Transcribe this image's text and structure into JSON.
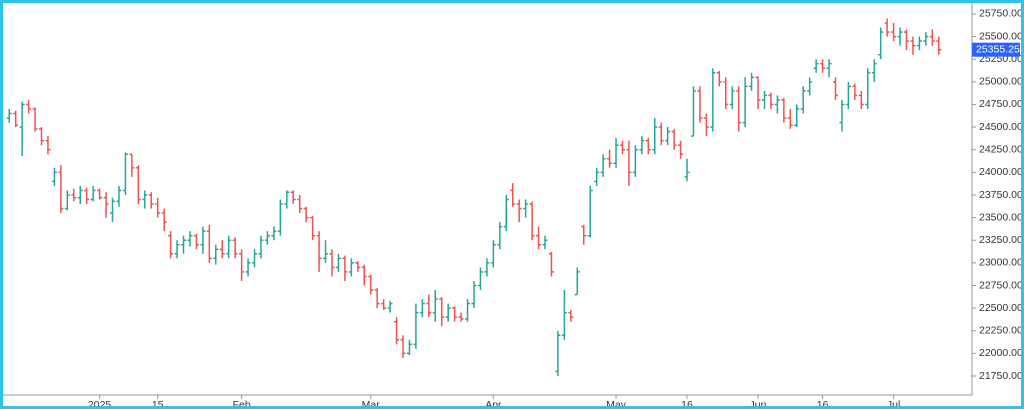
{
  "chart_data": {
    "type": "ohlc",
    "up_color": "#26a69a",
    "down_color": "#ef5350",
    "last_price_color": "#2962ff",
    "ylim": [
      21540,
      25860
    ],
    "yticks": [
      {
        "value": 21750,
        "label": "21750.00"
      },
      {
        "value": 22000,
        "label": "22000.00"
      },
      {
        "value": 22250,
        "label": "22250.00"
      },
      {
        "value": 22500,
        "label": "22500.00"
      },
      {
        "value": 22750,
        "label": "22750.00"
      },
      {
        "value": 23000,
        "label": "23000.00"
      },
      {
        "value": 23250,
        "label": "23250.00"
      },
      {
        "value": 23500,
        "label": "23500.00"
      },
      {
        "value": 23750,
        "label": "23750.00"
      },
      {
        "value": 24000,
        "label": "24000.00"
      },
      {
        "value": 24250,
        "label": "24250.00"
      },
      {
        "value": 24500,
        "label": "24500.00"
      },
      {
        "value": 24750,
        "label": "24750.00"
      },
      {
        "value": 25000,
        "label": "25000.00"
      },
      {
        "value": 25250,
        "label": "25250.00"
      },
      {
        "value": 25500,
        "label": "25500.00"
      },
      {
        "value": 25750,
        "label": "25750.00"
      }
    ],
    "last_price": 25355.25,
    "categories": [
      null,
      null,
      null,
      null,
      null,
      null,
      null,
      null,
      null,
      null,
      null,
      null,
      null,
      null,
      "2025",
      null,
      null,
      null,
      null,
      null,
      null,
      null,
      null,
      "15",
      null,
      null,
      null,
      null,
      null,
      null,
      null,
      null,
      null,
      null,
      null,
      null,
      "Feb",
      null,
      null,
      null,
      null,
      null,
      null,
      null,
      null,
      null,
      null,
      null,
      null,
      null,
      null,
      null,
      null,
      null,
      null,
      null,
      "Mar",
      null,
      null,
      null,
      null,
      null,
      null,
      null,
      null,
      null,
      null,
      null,
      null,
      null,
      null,
      null,
      null,
      null,
      null,
      "Apr",
      null,
      null,
      null,
      null,
      null,
      null,
      null,
      null,
      null,
      null,
      null,
      null,
      null,
      null,
      null,
      null,
      null,
      null,
      "May",
      null,
      null,
      null,
      null,
      null,
      null,
      null,
      null,
      null,
      null,
      "16",
      null,
      null,
      null,
      null,
      null,
      null,
      null,
      null,
      null,
      null,
      "Jun",
      null,
      null,
      null,
      null,
      null,
      null,
      null,
      null,
      null,
      "16",
      null,
      null,
      null,
      null,
      null,
      null,
      null,
      null,
      null,
      null,
      "Jul",
      null,
      null,
      null,
      null,
      null,
      null,
      null
    ],
    "ohlc": [
      [
        24600,
        24700,
        24550,
        24650
      ],
      [
        24650,
        24680,
        24500,
        24520
      ],
      [
        24500,
        24780,
        24180,
        24750
      ],
      [
        24750,
        24800,
        24650,
        24700
      ],
      [
        24700,
        24720,
        24450,
        24480
      ],
      [
        24480,
        24500,
        24300,
        24350
      ],
      [
        24350,
        24400,
        24200,
        24250
      ],
      [
        23900,
        24050,
        23850,
        24000
      ],
      [
        24000,
        24080,
        23550,
        23600
      ],
      [
        23600,
        23800,
        23580,
        23750
      ],
      [
        23750,
        23820,
        23680,
        23720
      ],
      [
        23720,
        23850,
        23650,
        23800
      ],
      [
        23800,
        23830,
        23650,
        23700
      ],
      [
        23700,
        23850,
        23680,
        23800
      ],
      [
        23800,
        23820,
        23700,
        23720
      ],
      [
        23720,
        23780,
        23500,
        23650
      ],
      [
        23550,
        23720,
        23450,
        23680
      ],
      [
        23680,
        23850,
        23620,
        23800
      ],
      [
        23800,
        24220,
        23750,
        24200
      ],
      [
        24200,
        24200,
        23950,
        24050
      ],
      [
        24050,
        24080,
        23650,
        23700
      ],
      [
        23700,
        23800,
        23600,
        23750
      ],
      [
        23750,
        23780,
        23600,
        23650
      ],
      [
        23650,
        23720,
        23500,
        23550
      ],
      [
        23550,
        23600,
        23350,
        23450
      ],
      [
        23300,
        23350,
        23050,
        23100
      ],
      [
        23100,
        23250,
        23050,
        23200
      ],
      [
        23200,
        23300,
        23100,
        23250
      ],
      [
        23250,
        23350,
        23180,
        23300
      ],
      [
        23300,
        23320,
        23150,
        23200
      ],
      [
        23200,
        23400,
        23100,
        23350
      ],
      [
        23350,
        23420,
        23000,
        23050
      ],
      [
        23050,
        23200,
        22980,
        23150
      ],
      [
        23150,
        23250,
        23050,
        23100
      ],
      [
        23100,
        23300,
        23050,
        23250
      ],
      [
        23250,
        23280,
        23050,
        23100
      ],
      [
        23100,
        23150,
        22800,
        22900
      ],
      [
        22900,
        23050,
        22850,
        23000
      ],
      [
        23000,
        23150,
        22950,
        23100
      ],
      [
        23100,
        23300,
        23050,
        23250
      ],
      [
        23250,
        23350,
        23200,
        23300
      ],
      [
        23300,
        23400,
        23250,
        23350
      ],
      [
        23350,
        23700,
        23300,
        23650
      ],
      [
        23650,
        23800,
        23600,
        23780
      ],
      [
        23780,
        23800,
        23650,
        23700
      ],
      [
        23700,
        23750,
        23550,
        23600
      ],
      [
        23600,
        23620,
        23450,
        23500
      ],
      [
        23500,
        23520,
        23250,
        23300
      ],
      [
        23300,
        23350,
        22900,
        23050
      ],
      [
        23050,
        23250,
        23000,
        23100
      ],
      [
        23100,
        23150,
        22850,
        22950
      ],
      [
        22950,
        23100,
        22900,
        23050
      ],
      [
        23050,
        23080,
        22800,
        22900
      ],
      [
        22900,
        23050,
        22850,
        23000
      ],
      [
        23000,
        23020,
        22900,
        22950
      ],
      [
        22950,
        22980,
        22750,
        22850
      ],
      [
        22850,
        22870,
        22650,
        22700
      ],
      [
        22700,
        22720,
        22500,
        22550
      ],
      [
        22550,
        22600,
        22480,
        22500
      ],
      [
        22500,
        22580,
        22450,
        22550
      ],
      [
        22350,
        22400,
        22100,
        22150
      ],
      [
        22150,
        22200,
        21950,
        22000
      ],
      [
        22000,
        22150,
        21980,
        22100
      ],
      [
        22100,
        22550,
        22050,
        22450
      ],
      [
        22450,
        22600,
        22400,
        22550
      ],
      [
        22550,
        22650,
        22400,
        22450
      ],
      [
        22450,
        22700,
        22350,
        22600
      ],
      [
        22600,
        22620,
        22300,
        22400
      ],
      [
        22400,
        22550,
        22350,
        22500
      ],
      [
        22500,
        22520,
        22350,
        22400
      ],
      [
        22400,
        22450,
        22350,
        22380
      ],
      [
        22380,
        22600,
        22350,
        22550
      ],
      [
        22550,
        22800,
        22500,
        22750
      ],
      [
        22750,
        22950,
        22700,
        22900
      ],
      [
        22900,
        23050,
        22850,
        23000
      ],
      [
        23000,
        23250,
        22950,
        23200
      ],
      [
        23200,
        23450,
        23150,
        23400
      ],
      [
        23400,
        23750,
        23350,
        23700
      ],
      [
        23800,
        23880,
        23620,
        23650
      ],
      [
        23650,
        23700,
        23450,
        23600
      ],
      [
        23600,
        23700,
        23500,
        23650
      ],
      [
        23650,
        23680,
        23250,
        23300
      ],
      [
        23300,
        23400,
        23150,
        23200
      ],
      [
        23200,
        23300,
        23150,
        23250
      ],
      [
        23100,
        23120,
        22850,
        22900
      ],
      [
        21800,
        22250,
        21750,
        22200
      ],
      [
        22200,
        22700,
        22150,
        22450
      ],
      [
        22450,
        22480,
        22350,
        22400
      ],
      [
        22650,
        22950,
        22650,
        22900
      ],
      [
        23400,
        23420,
        23200,
        23300
      ],
      [
        23300,
        23850,
        23280,
        23800
      ],
      [
        23900,
        24050,
        23850,
        24000
      ],
      [
        24000,
        24200,
        23950,
        24150
      ],
      [
        24150,
        24250,
        24050,
        24100
      ],
      [
        24100,
        24380,
        24050,
        24300
      ],
      [
        24300,
        24350,
        24200,
        24250
      ],
      [
        24250,
        24350,
        23850,
        24000
      ],
      [
        24000,
        24300,
        23950,
        24250
      ],
      [
        24250,
        24400,
        24200,
        24350
      ],
      [
        24350,
        24380,
        24200,
        24250
      ],
      [
        24250,
        24600,
        24200,
        24500
      ],
      [
        24500,
        24550,
        24300,
        24350
      ],
      [
        24350,
        24500,
        24300,
        24450
      ],
      [
        24450,
        24480,
        24250,
        24300
      ],
      [
        24300,
        24350,
        24150,
        24200
      ],
      [
        23950,
        24150,
        23900,
        24000
      ],
      [
        24400,
        24950,
        24400,
        24900
      ],
      [
        24900,
        24950,
        24550,
        24600
      ],
      [
        24600,
        24650,
        24400,
        24500
      ],
      [
        24500,
        25150,
        24450,
        25100
      ],
      [
        25100,
        25120,
        24950,
        25000
      ],
      [
        25000,
        25050,
        24700,
        24750
      ],
      [
        24750,
        24950,
        24700,
        24900
      ],
      [
        24900,
        24950,
        24450,
        24550
      ],
      [
        24550,
        25050,
        24500,
        24950
      ],
      [
        24950,
        25100,
        24900,
        25050
      ],
      [
        25050,
        25060,
        24700,
        24800
      ],
      [
        24800,
        24900,
        24700,
        24850
      ],
      [
        24850,
        24880,
        24700,
        24750
      ],
      [
        24750,
        24850,
        24650,
        24800
      ],
      [
        24800,
        24820,
        24550,
        24600
      ],
      [
        24600,
        24700,
        24480,
        24520
      ],
      [
        24520,
        24750,
        24500,
        24700
      ],
      [
        24700,
        24950,
        24650,
        24900
      ],
      [
        24900,
        25050,
        24850,
        25000
      ],
      [
        25150,
        25250,
        25100,
        25200
      ],
      [
        25200,
        25250,
        25100,
        25150
      ],
      [
        25150,
        25250,
        25050,
        25200
      ],
      [
        25000,
        25050,
        24800,
        24850
      ],
      [
        24550,
        24800,
        24450,
        24750
      ],
      [
        24750,
        25000,
        24700,
        24950
      ],
      [
        24950,
        24980,
        24800,
        24850
      ],
      [
        24850,
        24900,
        24700,
        24750
      ],
      [
        24750,
        25150,
        24700,
        25100
      ],
      [
        25100,
        25250,
        25000,
        25200
      ],
      [
        25300,
        25600,
        25250,
        25550
      ],
      [
        25650,
        25700,
        25500,
        25550
      ],
      [
        25550,
        25650,
        25450,
        25500
      ],
      [
        25500,
        25600,
        25400,
        25550
      ],
      [
        25550,
        25580,
        25350,
        25450
      ],
      [
        25450,
        25500,
        25300,
        25400
      ],
      [
        25400,
        25500,
        25350,
        25450
      ],
      [
        25450,
        25550,
        25400,
        25500
      ],
      [
        25500,
        25580,
        25400,
        25450
      ],
      [
        25450,
        25500,
        25300,
        25355.25
      ]
    ]
  }
}
